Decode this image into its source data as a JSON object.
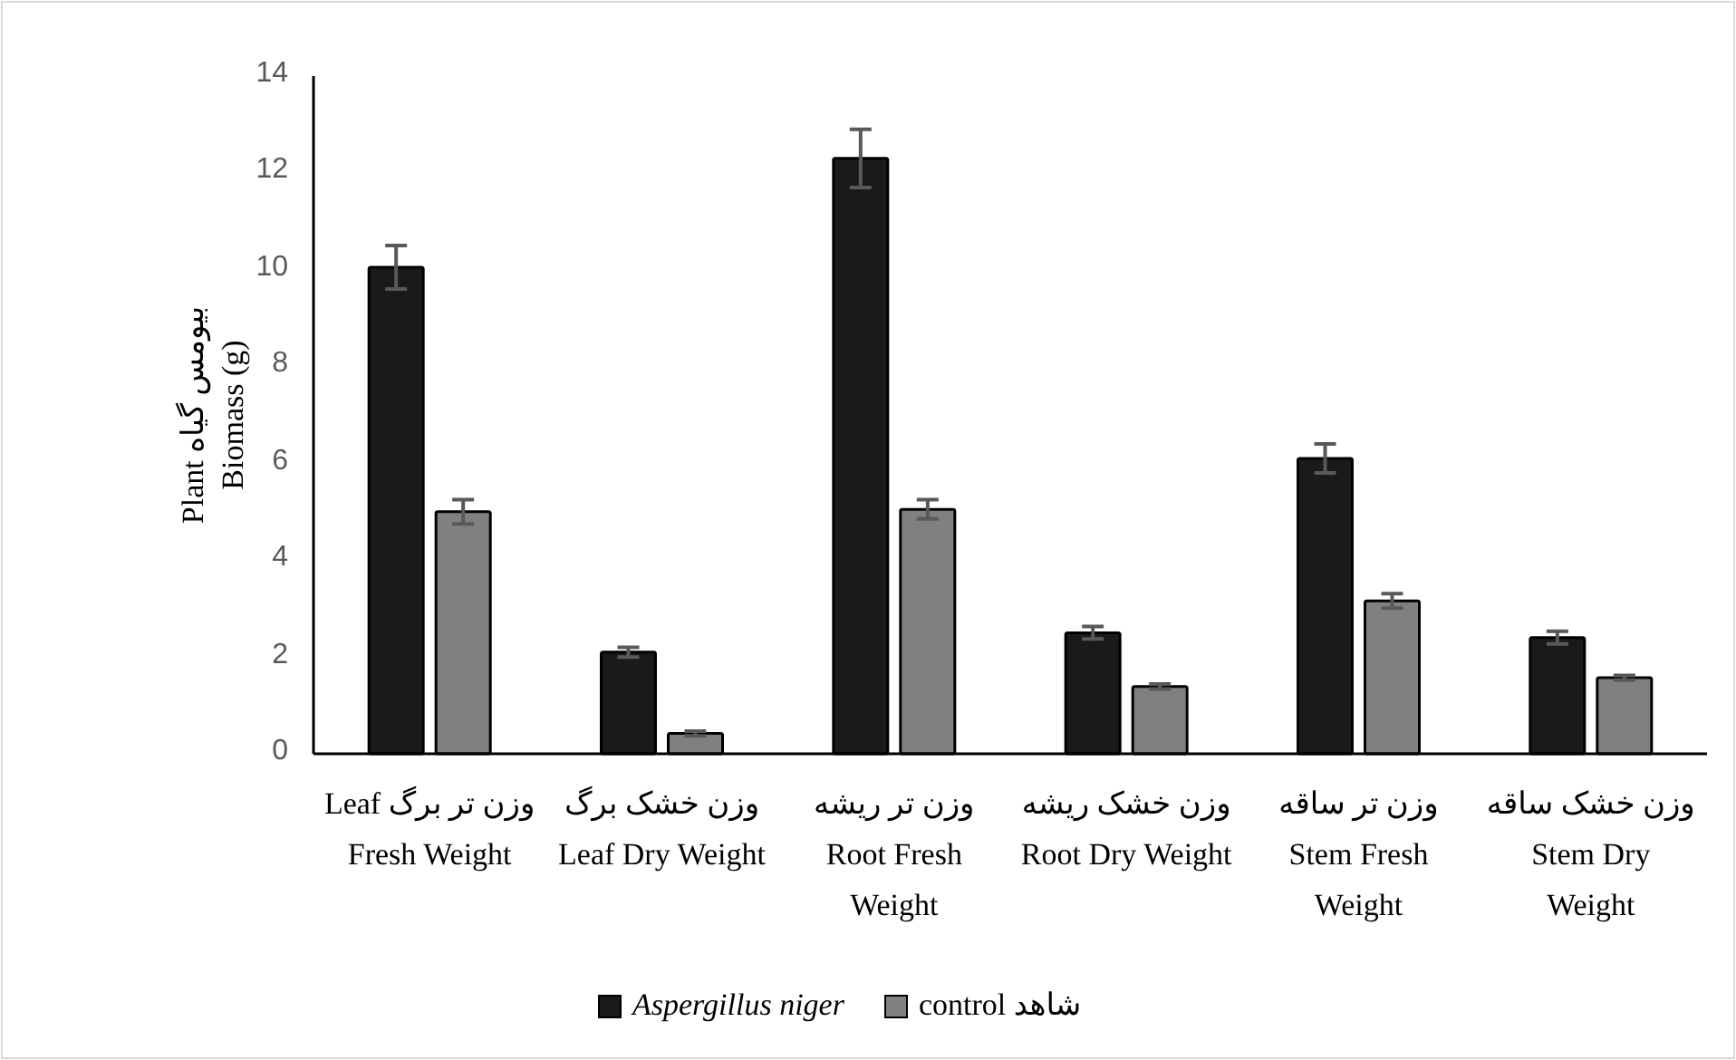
{
  "chart_data": {
    "type": "bar",
    "ylabel": "بیومس گیاه Plant Biomass (g)",
    "categories": [
      "وزن تر برگ Leaf Fresh Weight",
      "وزن خشک برگ Leaf Dry Weight",
      "وزن تر ریشه Root Fresh Weight",
      "وزن خشک ریشه Root Dry Weight",
      "وزن تر ساقه Stem Fresh Weight",
      "وزن خشک ساقه Stem Dry Weight"
    ],
    "series": [
      {
        "name": "Aspergillus niger",
        "color": "#1a1a1a",
        "values": [
          10.05,
          2.1,
          12.3,
          2.5,
          6.1,
          2.4
        ],
        "errors": [
          0.45,
          0.1,
          0.6,
          0.13,
          0.3,
          0.13
        ]
      },
      {
        "name": "control شاهد",
        "color": "#808080",
        "values": [
          5.0,
          0.42,
          5.05,
          1.39,
          3.16,
          1.57
        ],
        "errors": [
          0.25,
          0.05,
          0.2,
          0.05,
          0.15,
          0.05
        ]
      }
    ],
    "ylim": [
      0,
      14
    ],
    "yticks": [
      0,
      2,
      4,
      6,
      8,
      10,
      12,
      14
    ],
    "grid": false,
    "legend": "bottom"
  }
}
